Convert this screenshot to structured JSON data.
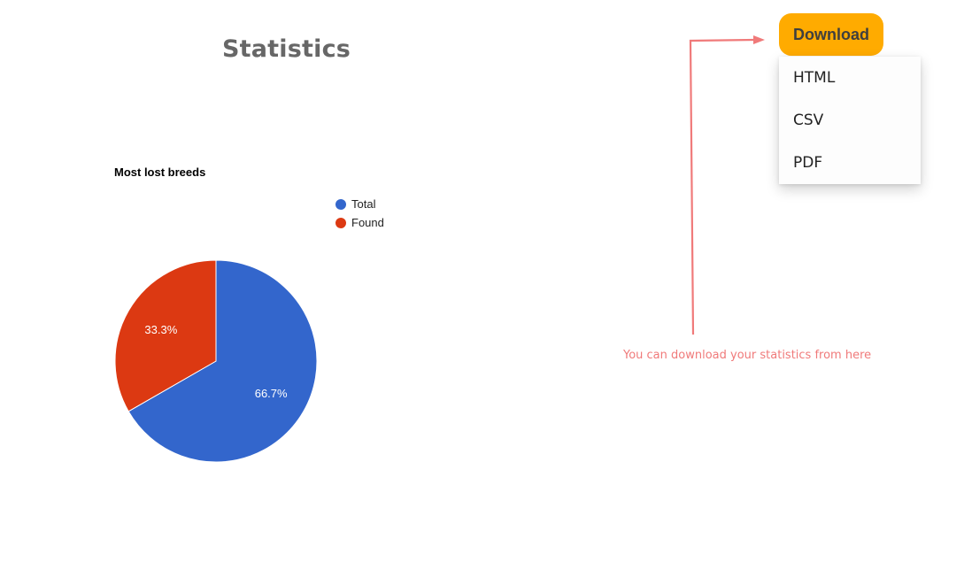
{
  "page": {
    "title": "Statistics"
  },
  "download": {
    "button_label": "Download",
    "menu_items": [
      "HTML",
      "CSV",
      "PDF"
    ]
  },
  "annotation": {
    "text": "You can download your statistics from here",
    "color": "#f07a7a"
  },
  "chart_data": {
    "type": "pie",
    "title": "Most lost breeds",
    "categories": [
      "Total",
      "Found"
    ],
    "values": [
      66.7,
      33.3
    ],
    "labels": [
      "66.7%",
      "33.3%"
    ],
    "colors": [
      "#3366cc",
      "#dc3912"
    ],
    "legend_position": "top-right"
  }
}
